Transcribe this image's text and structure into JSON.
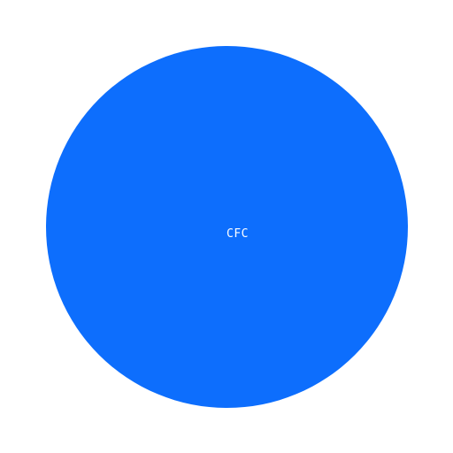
{
  "avatar": {
    "initials": "CFC",
    "background_color": "#0d6efd",
    "text_color": "#ffffff"
  }
}
